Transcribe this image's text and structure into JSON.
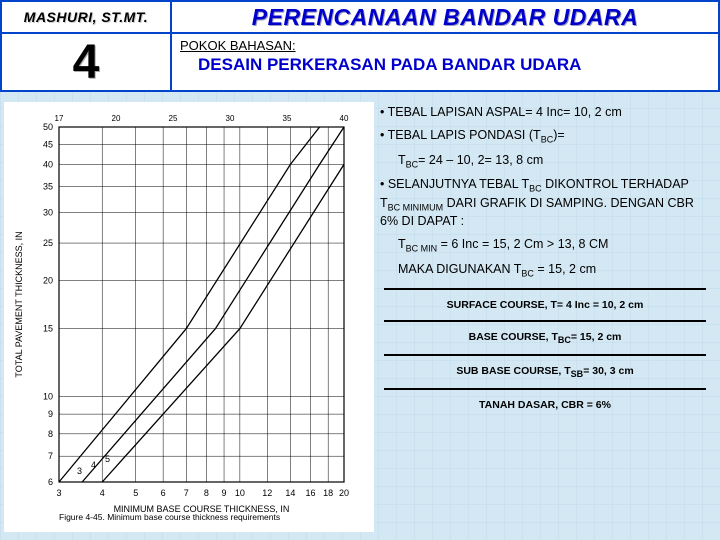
{
  "header": {
    "author": "MASHURI, ST.MT.",
    "number": "4",
    "title": "PERENCANAAN BANDAR UDARA",
    "pokok_label": "POKOK BAHASAN:",
    "subtitle": "DESAIN PERKERASAN PADA BANDAR UDARA"
  },
  "chart": {
    "background": "#ffffff",
    "axis_color": "#000000",
    "grid_color": "#000000",
    "line_color": "#000000",
    "xlabel": "MINIMUM BASE COURSE THICKNESS, IN",
    "ylabel": "TOTAL PAVEMENT THICKNESS, IN",
    "caption": "Figure 4-45.  Minimum base course thickness requirements",
    "x_ticks": [
      3,
      4,
      5,
      6,
      7,
      8,
      9,
      10,
      12,
      14,
      16,
      18,
      20
    ],
    "y_ticks": [
      6,
      7,
      8,
      9,
      10,
      15,
      20,
      25,
      30,
      35,
      40,
      45,
      50
    ],
    "x_range": [
      3,
      20
    ],
    "y_range": [
      6,
      50
    ],
    "log_x": true,
    "log_y": true,
    "cbr_labels": [
      "3",
      "4",
      "5"
    ],
    "curves": [
      {
        "label": "3",
        "points": [
          [
            3,
            6
          ],
          [
            7,
            15
          ],
          [
            14,
            40
          ],
          [
            17,
            50
          ]
        ]
      },
      {
        "label": "4",
        "points": [
          [
            3.5,
            6
          ],
          [
            8.5,
            15
          ],
          [
            17,
            40
          ],
          [
            20,
            50
          ]
        ]
      },
      {
        "label": "5",
        "points": [
          [
            4,
            6
          ],
          [
            10,
            15
          ],
          [
            20,
            40
          ]
        ]
      }
    ],
    "top_labels": [
      "17",
      "20",
      "25",
      "30",
      "35",
      "40"
    ]
  },
  "notes": {
    "b1": "• TEBAL LAPISAN ASPAL= 4 Inc= 10, 2 cm",
    "b2_pre": "• TEBAL LAPIS PONDASI (T",
    "b2_sub": "BC",
    "b2_post": ")=",
    "b3_pre": "T",
    "b3_sub": "BC",
    "b3_post": "= 24 – 10, 2= 13, 8 cm",
    "b4_pre": "• SELANJUTNYA TEBAL T",
    "b4_sub1": "BC",
    "b4_mid1": " DIKONTROL TERHADAP T",
    "b4_sub2": "BC MINIMUM",
    "b4_mid2": " DARI GRAFIK DI SAMPING. DENGAN CBR 6% DI DAPAT :",
    "b5_pre": "T",
    "b5_sub": "BC MIN",
    "b5_post": " = 6 Inc = 15, 2 Cm > 13, 8 CM",
    "b6_pre": "MAKA DIGUNAKAN T",
    "b6_sub": "BC",
    "b6_post": " = 15, 2 cm"
  },
  "layers": {
    "surface_pre": "SURFACE COURSE, T= 4 Inc = 10, 2 cm",
    "base_pre": "BASE COURSE, T",
    "base_sub": "BC",
    "base_post": "= 15, 2 cm",
    "subbase_pre": "SUB BASE COURSE, T",
    "subbase_sub": "SB",
    "subbase_post": "= 30, 3 cm",
    "tanah": "TANAH DASAR, CBR = 6%"
  }
}
